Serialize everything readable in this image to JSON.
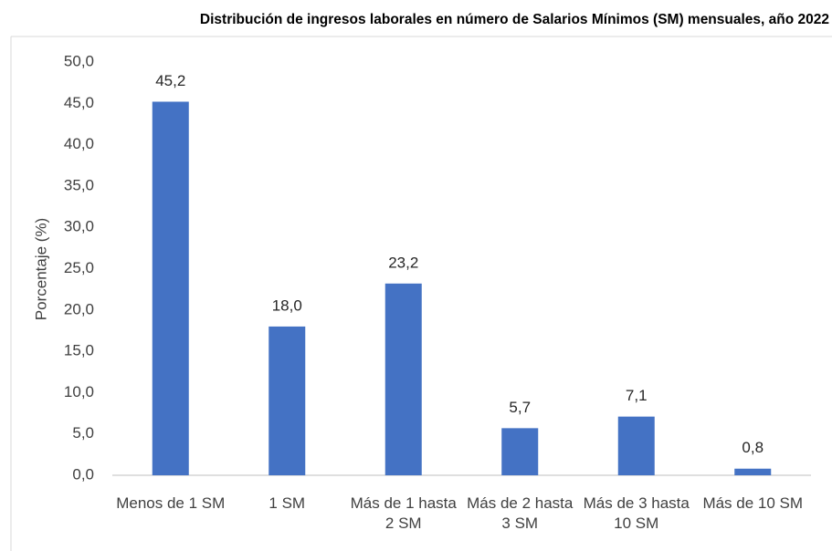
{
  "chart_data": {
    "type": "bar",
    "title": "Distribución de ingresos laborales en número de Salarios Mínimos (SM) mensuales, año 2022",
    "y_label": "Porcentaje (%)",
    "categories": [
      "Menos de 1 SM",
      "1 SM",
      "Más de 1 hasta 2 SM",
      "Más de 2 hasta 3 SM",
      "Más de 3 hasta 10 SM",
      "Más de 10 SM"
    ],
    "values": [
      45.2,
      18.0,
      23.2,
      5.7,
      7.1,
      0.8
    ],
    "value_labels": [
      "45,2",
      "18,0",
      "23,2",
      "5,7",
      "7,1",
      "0,8"
    ],
    "color": "#4472c4",
    "ylim": [
      0,
      50
    ],
    "yticks": [
      {
        "value": 0,
        "label": "0,0"
      },
      {
        "value": 5,
        "label": "5,0"
      },
      {
        "value": 10,
        "label": "10,0"
      },
      {
        "value": 15,
        "label": "15,0"
      },
      {
        "value": 20,
        "label": "20,0"
      },
      {
        "value": 25,
        "label": "25,0"
      },
      {
        "value": 30,
        "label": "30,0"
      },
      {
        "value": 35,
        "label": "35,0"
      },
      {
        "value": 40,
        "label": "40,0"
      },
      {
        "value": 45,
        "label": "45,0"
      },
      {
        "value": 50,
        "label": "50,0"
      }
    ],
    "grid": false
  }
}
